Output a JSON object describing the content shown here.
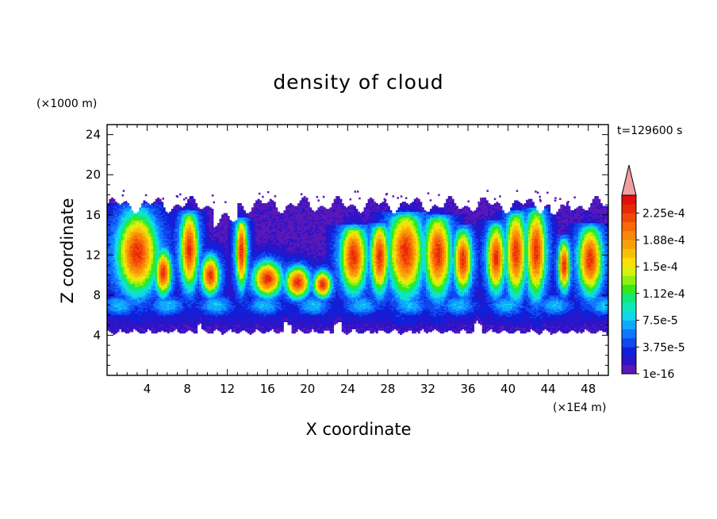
{
  "chart_data": {
    "type": "heatmap",
    "title": "density of cloud",
    "xlabel": "X coordinate",
    "ylabel": "Z coordinate",
    "x_unit": "(×1E4 m)",
    "y_unit": "(×1000 m)",
    "time_label": "t=129600 s",
    "xlim": [
      0,
      50
    ],
    "ylim": [
      0,
      25
    ],
    "x_ticks": [
      4,
      8,
      12,
      16,
      20,
      24,
      28,
      32,
      36,
      40,
      44,
      48
    ],
    "y_ticks": [
      4,
      8,
      12,
      16,
      20,
      24
    ],
    "cloud_base": 4.7,
    "cloud_top_typical": 17.0,
    "cells": [
      {
        "x": 3.0,
        "w": 2.0,
        "top": 16.7,
        "core": [
          9.5,
          15.0
        ]
      },
      {
        "x": 5.6,
        "w": 0.8,
        "top": 13.8,
        "core": [
          9.0,
          11.5
        ]
      },
      {
        "x": 8.2,
        "w": 0.9,
        "top": 16.0,
        "core": [
          10.0,
          15.3
        ]
      },
      {
        "x": 10.3,
        "w": 0.9,
        "top": 13.0,
        "core": [
          9.0,
          11.0
        ]
      },
      {
        "x": 13.4,
        "w": 0.6,
        "top": 15.2,
        "core": [
          10.0,
          14.8
        ]
      },
      {
        "x": 16.0,
        "w": 1.4,
        "top": 14.2,
        "core": [
          8.8,
          10.5
        ]
      },
      {
        "x": 19.0,
        "w": 1.2,
        "top": 13.6,
        "core": [
          8.6,
          10.0
        ]
      },
      {
        "x": 21.5,
        "w": 0.9,
        "top": 13.2,
        "core": [
          8.6,
          9.6
        ]
      },
      {
        "x": 24.6,
        "w": 1.3,
        "top": 14.5,
        "core": [
          9.5,
          14.2
        ]
      },
      {
        "x": 27.2,
        "w": 0.9,
        "top": 14.7,
        "core": [
          9.5,
          14.2
        ]
      },
      {
        "x": 29.8,
        "w": 1.7,
        "top": 15.8,
        "core": [
          9.3,
          15.3
        ]
      },
      {
        "x": 33.0,
        "w": 1.3,
        "top": 15.6,
        "core": [
          9.3,
          15.0
        ]
      },
      {
        "x": 35.5,
        "w": 0.9,
        "top": 14.5,
        "core": [
          9.5,
          13.5
        ]
      },
      {
        "x": 38.8,
        "w": 0.9,
        "top": 15.0,
        "core": [
          9.5,
          14.0
        ]
      },
      {
        "x": 40.8,
        "w": 1.0,
        "top": 16.0,
        "core": [
          9.3,
          15.2
        ]
      },
      {
        "x": 42.8,
        "w": 1.0,
        "top": 16.2,
        "core": [
          9.3,
          15.5
        ]
      },
      {
        "x": 45.6,
        "w": 0.6,
        "top": 13.6,
        "core": [
          9.5,
          12.5
        ]
      },
      {
        "x": 48.2,
        "w": 1.2,
        "top": 14.7,
        "core": [
          9.3,
          13.8
        ]
      }
    ],
    "colorbar": {
      "labels": [
        "1e-16",
        "3.75e-5",
        "7.5e-5",
        "1.12e-4",
        "1.5e-4",
        "1.88e-4",
        "2.25e-4"
      ],
      "colors": [
        "#5a18b8",
        "#2c14c8",
        "#1020d8",
        "#1048f0",
        "#1078ff",
        "#10a8ff",
        "#10d8e8",
        "#10e8b8",
        "#10e878",
        "#38e818",
        "#90f010",
        "#d8f010",
        "#f8e008",
        "#f8c008",
        "#f8a008",
        "#f88808",
        "#f86808",
        "#f04808",
        "#e82808",
        "#e01010"
      ],
      "overflow_color": "#f0a0a0"
    }
  }
}
